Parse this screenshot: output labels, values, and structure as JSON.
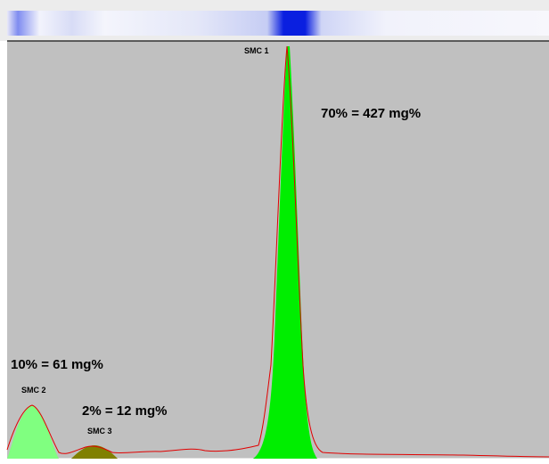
{
  "peaks": [
    {
      "label": "SMC 1",
      "annotation": "70% = 427 mg%"
    },
    {
      "label": "SMC 2",
      "annotation": "10% = 61 mg%"
    },
    {
      "label": "SMC 3",
      "annotation": "2% = 12 mg%"
    }
  ]
}
